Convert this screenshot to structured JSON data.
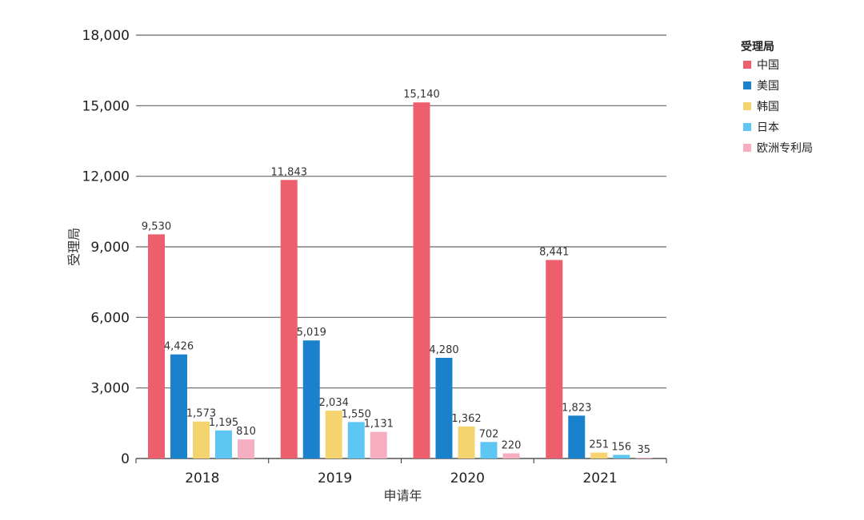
{
  "chart_data": {
    "type": "bar",
    "categories": [
      "2018",
      "2019",
      "2020",
      "2021"
    ],
    "series": [
      {
        "name": "中国",
        "color": "#ee5f6e",
        "values": [
          9530,
          11843,
          15140,
          8441
        ],
        "labels": [
          "9,530",
          "11,843",
          "15,140",
          "8,441"
        ]
      },
      {
        "name": "美国",
        "color": "#1a82cc",
        "values": [
          4426,
          5019,
          4280,
          1823
        ],
        "labels": [
          "4,426",
          "5,019",
          "4,280",
          "1,823"
        ]
      },
      {
        "name": "韩国",
        "color": "#f5d36e",
        "values": [
          1573,
          2034,
          1362,
          251
        ],
        "labels": [
          "1,573",
          "2,034",
          "1,362",
          "251"
        ]
      },
      {
        "name": "日本",
        "color": "#5ec6f2",
        "values": [
          1195,
          1550,
          702,
          156
        ],
        "labels": [
          "1,195",
          "1,550",
          "702",
          "156"
        ]
      },
      {
        "name": "欧洲专利局",
        "color": "#f6aec0",
        "values": [
          810,
          1131,
          220,
          35
        ],
        "labels": [
          "810",
          "1,131",
          "220",
          "35"
        ]
      }
    ],
    "xlabel": "申请年",
    "ylabel": "受理局",
    "ylim": [
      0,
      18000
    ],
    "yticks": [
      0,
      3000,
      6000,
      9000,
      12000,
      15000,
      18000
    ],
    "ytick_labels": [
      "0",
      "3,000",
      "6,000",
      "9,000",
      "12,000",
      "15,000",
      "18,000"
    ],
    "legend_title": "受理局",
    "legend_position": "top-right",
    "grid": "horizontal"
  }
}
